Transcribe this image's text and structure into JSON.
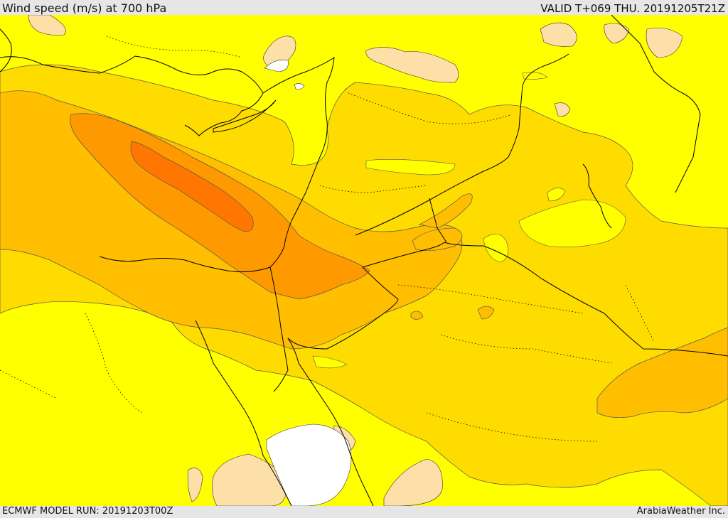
{
  "header": {
    "title": "Wind speed (m/s) at 700 hPa",
    "valid": "VALID T+069 THU. 20191205T21Z"
  },
  "footer": {
    "model_run": "ECMWF MODEL RUN: 20191203T00Z",
    "credit": "ArabiaWeather Inc."
  },
  "palette": {
    "calm": "#ffffff",
    "light": "#fde0a8",
    "base": "#ffff00",
    "band1": "#ffdc00",
    "band2": "#ffbf00",
    "band3": "#ff9900",
    "band4": "#ff7700",
    "coast": "#000000"
  }
}
